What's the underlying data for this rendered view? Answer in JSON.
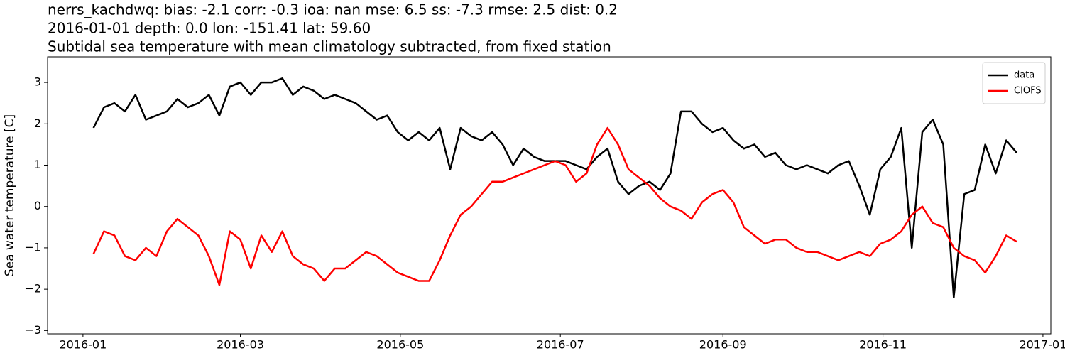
{
  "chart_data": {
    "type": "line",
    "title": [
      "nerrs_kachdwq: bias: -2.1  corr: -0.3  ioa: nan  mse: 6.5  ss: -7.3  rmse: 2.5  dist: 0.2",
      "2016-01-01 depth: 0.0 lon: -151.41 lat: 59.60",
      "Subtidal sea temperature with mean climatology subtracted, from fixed station"
    ],
    "y_label": "Sea water temperature [C]",
    "x": [
      4,
      8,
      12,
      16,
      20,
      24,
      28,
      32,
      36,
      40,
      44,
      48,
      52,
      56,
      60,
      64,
      68,
      72,
      76,
      80,
      84,
      88,
      92,
      96,
      100,
      104,
      108,
      112,
      116,
      120,
      124,
      128,
      132,
      136,
      140,
      144,
      148,
      152,
      156,
      160,
      164,
      168,
      172,
      176,
      180,
      184,
      188,
      192,
      196,
      200,
      204,
      208,
      212,
      216,
      220,
      224,
      228,
      232,
      236,
      240,
      244,
      248,
      252,
      256,
      260,
      264,
      268,
      272,
      276,
      280,
      284,
      288,
      292,
      296,
      300,
      304,
      308,
      312,
      316,
      320,
      324,
      328,
      332,
      336,
      340,
      344,
      348,
      352,
      356
    ],
    "series": [
      {
        "name": "data",
        "color": "#000000",
        "values": [
          1.9,
          2.4,
          2.5,
          2.3,
          2.7,
          2.1,
          2.2,
          2.3,
          2.6,
          2.4,
          2.5,
          2.7,
          2.2,
          2.9,
          3.0,
          2.7,
          3.0,
          3.0,
          3.1,
          2.7,
          2.9,
          2.8,
          2.6,
          2.7,
          2.6,
          2.5,
          2.3,
          2.1,
          2.2,
          1.8,
          1.6,
          1.8,
          1.6,
          1.9,
          0.9,
          1.9,
          1.7,
          1.6,
          1.8,
          1.5,
          1.0,
          1.4,
          1.2,
          1.1,
          1.1,
          1.1,
          1.0,
          0.9,
          1.2,
          1.4,
          0.6,
          0.3,
          0.5,
          0.6,
          0.4,
          0.8,
          2.3,
          2.3,
          2.0,
          1.8,
          1.9,
          1.6,
          1.4,
          1.5,
          1.2,
          1.3,
          1.0,
          0.9,
          1.0,
          0.9,
          0.8,
          1.0,
          1.1,
          0.5,
          -0.2,
          0.9,
          1.2,
          1.9,
          -1.0,
          1.8,
          2.1,
          1.5,
          -2.2,
          0.3,
          0.4,
          1.5,
          0.8,
          1.6,
          1.3
        ]
      },
      {
        "name": "CIOFS",
        "color": "#ff0000",
        "values": [
          -1.15,
          -0.6,
          -0.7,
          -1.2,
          -1.3,
          -1.0,
          -1.2,
          -0.6,
          -0.3,
          -0.5,
          -0.7,
          -1.2,
          -1.9,
          -0.6,
          -0.8,
          -1.5,
          -0.7,
          -1.1,
          -0.6,
          -1.2,
          -1.4,
          -1.5,
          -1.8,
          -1.5,
          -1.5,
          -1.3,
          -1.1,
          -1.2,
          -1.4,
          -1.6,
          -1.7,
          -1.8,
          -1.8,
          -1.3,
          -0.7,
          -0.2,
          0.0,
          0.3,
          0.6,
          0.6,
          0.7,
          0.8,
          0.9,
          1.0,
          1.1,
          1.0,
          0.6,
          0.8,
          1.5,
          1.9,
          1.5,
          0.9,
          0.7,
          0.5,
          0.2,
          0.0,
          -0.1,
          -0.3,
          0.1,
          0.3,
          0.4,
          0.1,
          -0.5,
          -0.7,
          -0.9,
          -0.8,
          -0.8,
          -1.0,
          -1.1,
          -1.1,
          -1.2,
          -1.3,
          -1.2,
          -1.1,
          -1.2,
          -0.9,
          -0.8,
          -0.6,
          -0.2,
          0.0,
          -0.4,
          -0.5,
          -1.0,
          -1.2,
          -1.3,
          -1.6,
          -1.2,
          -0.7,
          -0.85
        ]
      }
    ],
    "xlim": [
      -13.5,
      369
    ],
    "xticks": [
      {
        "value": 0,
        "label": "2016-01"
      },
      {
        "value": 60,
        "label": "2016-03"
      },
      {
        "value": 121,
        "label": "2016-05"
      },
      {
        "value": 182,
        "label": "2016-07"
      },
      {
        "value": 244,
        "label": "2016-09"
      },
      {
        "value": 305,
        "label": "2016-11"
      },
      {
        "value": 366,
        "label": "2017-01"
      }
    ],
    "ylim": [
      -3.08,
      3.62
    ],
    "yticks": [
      {
        "value": -3,
        "label": "−3"
      },
      {
        "value": -2,
        "label": "−2"
      },
      {
        "value": -1,
        "label": "−1"
      },
      0,
      1,
      2,
      3
    ],
    "legend": "upper right"
  }
}
